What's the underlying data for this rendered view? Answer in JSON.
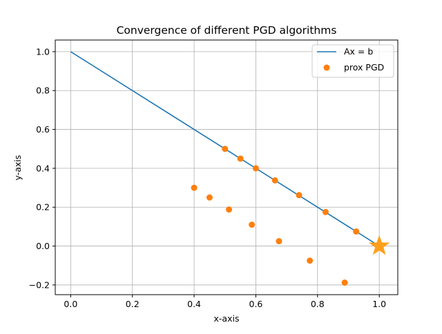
{
  "chart_data": {
    "type": "scatter",
    "title": "Convergence of different PGD algorithms",
    "xlabel": "x-axis",
    "ylabel": "y-axis",
    "xlim": [
      -0.05,
      1.06
    ],
    "ylim": [
      -0.25,
      1.06
    ],
    "xticks": [
      0.0,
      0.2,
      0.4,
      0.6,
      0.8,
      1.0
    ],
    "xtick_labels": [
      "0.0",
      "0.2",
      "0.4",
      "0.6",
      "0.8",
      "1.0"
    ],
    "yticks": [
      -0.2,
      0.0,
      0.2,
      0.4,
      0.6,
      0.8,
      1.0
    ],
    "ytick_labels": [
      "−0.2",
      "0.0",
      "0.2",
      "0.4",
      "0.6",
      "0.8",
      "1.0"
    ],
    "grid": true,
    "legend_position": "top-right",
    "series": [
      {
        "name": "Ax = b",
        "kind": "line",
        "color": "#1f77b4",
        "x": [
          0.0,
          1.0
        ],
        "y": [
          1.0,
          0.0
        ]
      },
      {
        "name": "prox PGD",
        "kind": "scatter",
        "color": "#ff7f0e",
        "x": [
          0.4,
          0.45,
          0.513,
          0.587,
          0.675,
          0.775,
          0.888,
          0.5,
          0.55,
          0.6,
          0.662,
          0.74,
          0.826,
          0.925
        ],
        "y": [
          0.3,
          0.25,
          0.188,
          0.11,
          0.025,
          -0.075,
          -0.188,
          0.5,
          0.45,
          0.4,
          0.338,
          0.262,
          0.175,
          0.075
        ]
      }
    ],
    "annotations": [
      {
        "kind": "star-marker",
        "color": "#ff9f1c",
        "x": 1.0,
        "y": 0.0
      }
    ]
  }
}
